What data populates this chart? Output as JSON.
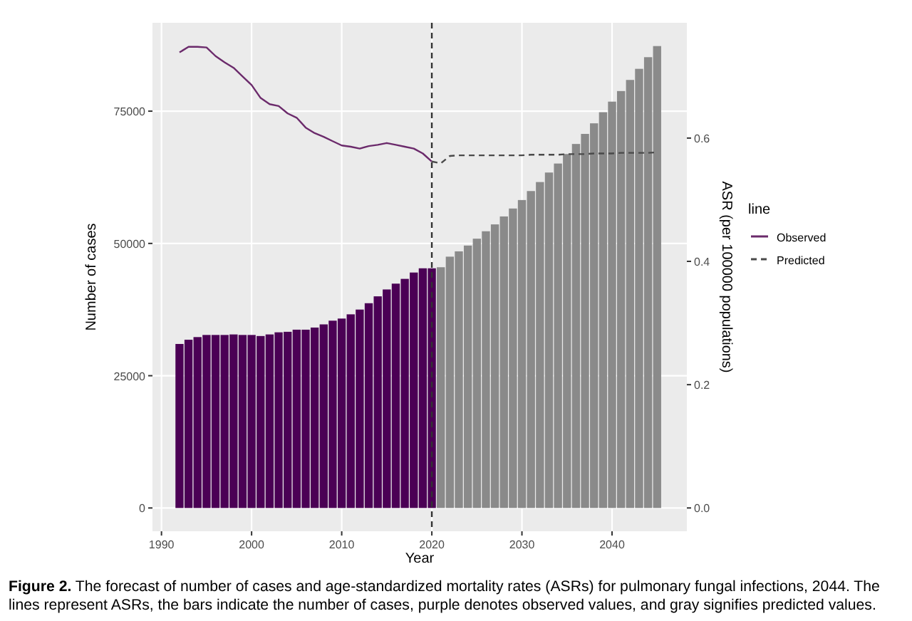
{
  "chart_data": {
    "type": "bar",
    "xlabel": "Year",
    "ylabel": "Number of cases",
    "y2label": "ASR (per 100000 populations)",
    "legend_title": "line",
    "legend": "right",
    "grid": true,
    "xlim": [
      1989,
      2048.3
    ],
    "xticks": [
      1990,
      2000,
      2010,
      2020,
      2030,
      2040
    ],
    "ylim": [
      -4400,
      91700
    ],
    "yticks": [
      0,
      25000,
      50000,
      75000
    ],
    "y2lim": [
      -0.0378,
      0.787
    ],
    "y2ticks": [
      {
        "value": 0,
        "label": "0.0"
      },
      0.2,
      0.4,
      0.6
    ],
    "ref_lines": [
      {
        "axis": "x",
        "value": 2020,
        "color": "#333333",
        "line_style": "dashed"
      }
    ],
    "series": [
      {
        "color": "#4b0055",
        "x": [
          1992,
          1993,
          1994,
          1995,
          1996,
          1997,
          1998,
          1999,
          2000,
          2001,
          2002,
          2003,
          2004,
          2005,
          2006,
          2007,
          2008,
          2009,
          2010,
          2011,
          2012,
          2013,
          2014,
          2015,
          2016,
          2017,
          2018,
          2019,
          2020
        ],
        "values": [
          31000,
          31800,
          32300,
          32700,
          32700,
          32700,
          32800,
          32700,
          32700,
          32500,
          32800,
          33200,
          33300,
          33700,
          33700,
          34100,
          34700,
          35400,
          35800,
          36600,
          37500,
          38700,
          40000,
          41300,
          42400,
          43300,
          44500,
          45300,
          45300
        ]
      },
      {
        "color": "#8a8a8a",
        "x": [
          2021,
          2022,
          2023,
          2024,
          2025,
          2026,
          2027,
          2028,
          2029,
          2030,
          2031,
          2032,
          2033,
          2034,
          2035,
          2036,
          2037,
          2038,
          2039,
          2040,
          2041,
          2042,
          2043,
          2044,
          2045
        ],
        "values": [
          45500,
          47500,
          48500,
          49600,
          50900,
          52300,
          53600,
          55100,
          56600,
          58200,
          59900,
          61600,
          63400,
          65100,
          66900,
          68800,
          70700,
          72700,
          74800,
          76800,
          78800,
          80900,
          83000,
          85200,
          87300
        ]
      },
      {
        "type": "line",
        "name": "Observed",
        "axis": "y2",
        "color": "#6b2a6b",
        "line_style": "solid",
        "x": [
          1992,
          1993,
          1994,
          1995,
          1996,
          1997,
          1998,
          1999,
          2000,
          2001,
          2002,
          2003,
          2004,
          2005,
          2006,
          2007,
          2008,
          2009,
          2010,
          2011,
          2012,
          2013,
          2014,
          2015,
          2016,
          2017,
          2018,
          2019,
          2020
        ],
        "values": [
          0.739,
          0.748,
          0.748,
          0.747,
          0.733,
          0.723,
          0.714,
          0.7,
          0.686,
          0.665,
          0.655,
          0.652,
          0.64,
          0.633,
          0.617,
          0.608,
          0.602,
          0.595,
          0.588,
          0.586,
          0.583,
          0.587,
          0.589,
          0.592,
          0.589,
          0.586,
          0.583,
          0.575,
          0.562
        ]
      },
      {
        "type": "line",
        "name": "Predicted",
        "axis": "y2",
        "color": "#4a4a4a",
        "line_style": "dashed",
        "x": [
          2020,
          2021,
          2022,
          2023,
          2024,
          2025,
          2026,
          2027,
          2028,
          2029,
          2030,
          2031,
          2032,
          2033,
          2034,
          2035,
          2036,
          2037,
          2038,
          2039,
          2040,
          2041,
          2042,
          2043,
          2044,
          2045
        ],
        "values": [
          0.562,
          0.559,
          0.571,
          0.572,
          0.572,
          0.572,
          0.572,
          0.572,
          0.572,
          0.572,
          0.572,
          0.573,
          0.573,
          0.573,
          0.573,
          0.574,
          0.574,
          0.574,
          0.575,
          0.575,
          0.575,
          0.576,
          0.576,
          0.576,
          0.576,
          0.577
        ]
      }
    ],
    "annotations": [
      "Figure 2.",
      "The forecast of number of cases and age-standardized mortality rates (ASRs) for pulmonary fungal infections, 2044. The lines represent ASRs, the bars indicate the number of cases, purple denotes observed values, and gray signifies predicted values."
    ]
  }
}
